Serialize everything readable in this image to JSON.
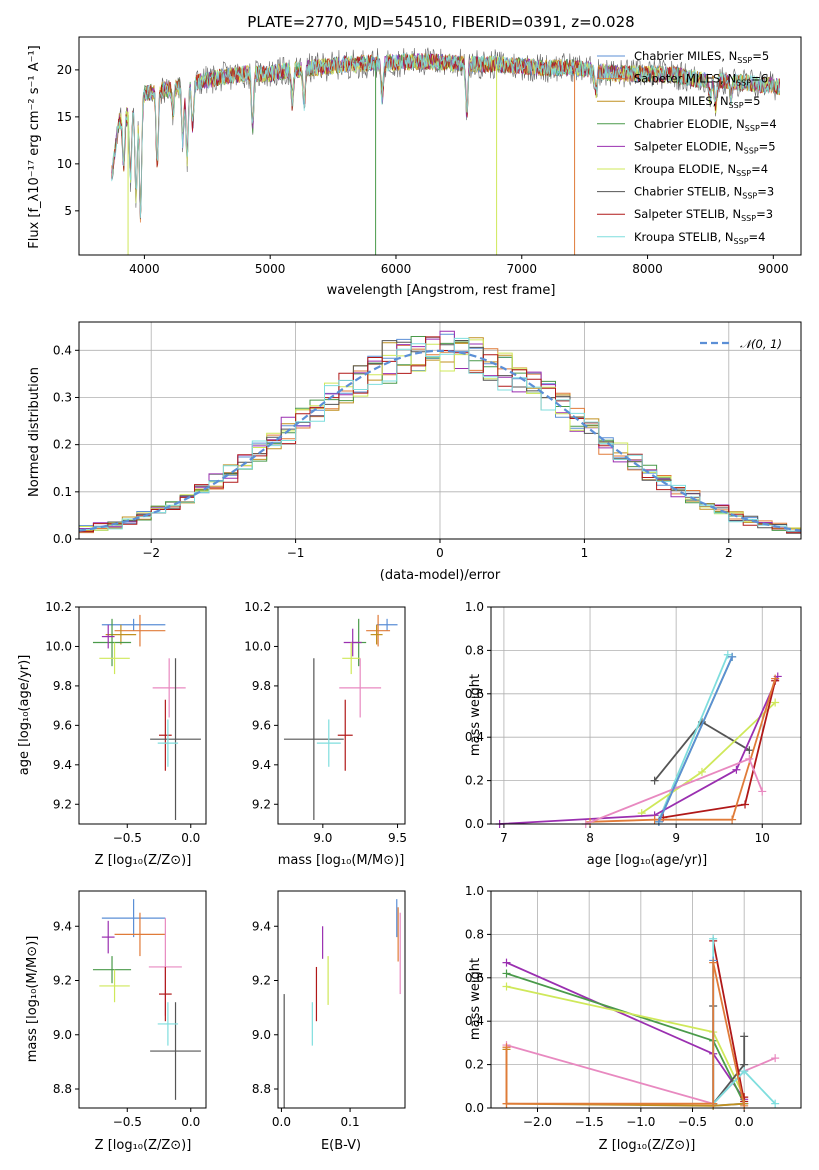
{
  "page_title": "PLATE=2770, MJD=54510, FIBERID=0391, z=0.028",
  "colors": [
    "#5b8fd6",
    "#e07b39",
    "#c09020",
    "#4a9a4a",
    "#9a2fb0",
    "#cfe85a",
    "#555555",
    "#b01818",
    "#7fdede"
  ],
  "chart_data": [
    {
      "id": "spectrum",
      "type": "line",
      "title": "PLATE=2770, MJD=54510, FIBERID=0391, z=0.028",
      "xlabel": "wavelength [Angstrom, rest frame]",
      "ylabel": "Flux [f_λ10⁻¹⁷ erg cm⁻² s⁻¹ A⁻¹]",
      "xlim": [
        3480,
        9220
      ],
      "ylim": [
        0.3,
        23.5
      ],
      "xticks": [
        4000,
        5000,
        6000,
        7000,
        8000,
        9000
      ],
      "yticks": [
        5,
        10,
        15,
        20
      ],
      "legend_position": "upper-right",
      "legend": [
        "Chabrier MILES, N_SSP=5",
        "Salpeter MILES, N_SSP=6",
        "Kroupa MILES, N_SSP=5",
        "Chabrier ELODIE, N_SSP=4",
        "Salpeter ELODIE, N_SSP=5",
        "Kroupa ELODIE, N_SSP=4",
        "Chabrier STELIB, N_SSP=3",
        "Salpeter STELIB, N_SSP=3",
        "Kroupa STELIB, N_SSP=4"
      ],
      "continuum": [
        [
          3740,
          9.0
        ],
        [
          3800,
          14.5
        ],
        [
          3900,
          16.0
        ],
        [
          4000,
          17.5
        ],
        [
          4200,
          18.0
        ],
        [
          4400,
          18.6
        ],
        [
          4600,
          19.2
        ],
        [
          4800,
          19.6
        ],
        [
          5000,
          19.6
        ],
        [
          5200,
          20.0
        ],
        [
          5400,
          20.3
        ],
        [
          5600,
          20.6
        ],
        [
          5800,
          20.7
        ],
        [
          6000,
          20.8
        ],
        [
          6200,
          20.9
        ],
        [
          6400,
          20.8
        ],
        [
          6600,
          20.6
        ],
        [
          6800,
          20.6
        ],
        [
          7000,
          20.4
        ],
        [
          7200,
          20.2
        ],
        [
          7400,
          20.3
        ],
        [
          7600,
          19.8
        ],
        [
          7800,
          19.6
        ],
        [
          8000,
          19.6
        ],
        [
          8200,
          19.5
        ],
        [
          8400,
          19.0
        ],
        [
          8600,
          18.8
        ],
        [
          8800,
          18.6
        ],
        [
          9000,
          18.3
        ],
        [
          9050,
          18.2
        ]
      ],
      "absorption": [
        [
          3835,
          10.0
        ],
        [
          3889,
          8.5
        ],
        [
          3934,
          6.5
        ],
        [
          3969,
          4.3
        ],
        [
          4102,
          9.8
        ],
        [
          4227,
          15.5
        ],
        [
          4305,
          12.5
        ],
        [
          4340,
          10.5
        ],
        [
          4384,
          14.0
        ],
        [
          4861,
          14.0
        ],
        [
          5175,
          16.5
        ],
        [
          5270,
          16.5
        ],
        [
          5890,
          17.0
        ],
        [
          6563,
          15.5
        ],
        [
          7590,
          17.5
        ],
        [
          8498,
          17.0
        ],
        [
          8542,
          16.0
        ],
        [
          8662,
          17.0
        ]
      ],
      "drops": [
        [
          3870,
          0.3,
          "#cfe85a"
        ],
        [
          5838,
          0.3,
          "#4a9a4a"
        ],
        [
          6800,
          0.3,
          "#cfe85a"
        ],
        [
          7420,
          0.3,
          "#e07b39"
        ]
      ]
    },
    {
      "id": "residuals",
      "type": "histogram",
      "xlabel": "(data-model)/error",
      "ylabel": "Normed distribution",
      "xlim": [
        -2.5,
        2.5
      ],
      "ylim": [
        0,
        0.46
      ],
      "xticks": [
        -2,
        -1,
        0,
        1,
        2
      ],
      "yticks": [
        0.0,
        0.1,
        0.2,
        0.3,
        0.4
      ],
      "reference_curve": "𝒩(0, 1)",
      "legend_position": "upper-right",
      "bin_width": 0.1
    },
    {
      "id": "age-vs-Z",
      "type": "errorbar",
      "xlabel": "Z [log₁₀(Z/Z⊙)]",
      "ylabel": "age  [log₁₀(age/yr)]",
      "xlim": [
        -0.88,
        0.12
      ],
      "ylim": [
        9.1,
        10.2
      ],
      "xticks": [
        -0.5,
        0.0
      ],
      "yticks": [
        9.2,
        9.4,
        9.6,
        9.8,
        10.0,
        10.2
      ],
      "points": [
        {
          "x": -0.45,
          "y": 10.11,
          "xerr": 0.25,
          "yerr": 0.03
        },
        {
          "x": -0.4,
          "y": 10.08,
          "xerr": 0.2,
          "yerr": 0.08
        },
        {
          "x": -0.55,
          "y": 10.06,
          "xerr": 0.12,
          "yerr": 0.05
        },
        {
          "x": -0.62,
          "y": 10.02,
          "xerr": 0.15,
          "yerr": 0.12
        },
        {
          "x": -0.65,
          "y": 10.05,
          "xerr": 0.05,
          "yerr": 0.06
        },
        {
          "x": -0.6,
          "y": 9.94,
          "xerr": 0.12,
          "yerr": 0.08
        },
        {
          "x": -0.17,
          "y": 9.79,
          "xerr": 0.13,
          "yerr": 0.15
        },
        {
          "x": -0.2,
          "y": 9.55,
          "xerr": 0.05,
          "yerr": 0.18
        },
        {
          "x": -0.12,
          "y": 9.53,
          "xerr": 0.2,
          "yerr": 0.41
        },
        {
          "x": -0.18,
          "y": 9.51,
          "xerr": 0.08,
          "yerr": 0.12
        }
      ]
    },
    {
      "id": "age-vs-mass",
      "type": "errorbar",
      "xlabel": "mass [log₁₀(M/M⊙)]",
      "xlim": [
        8.7,
        9.55
      ],
      "ylim": [
        9.1,
        10.2
      ],
      "xticks": [
        9.0,
        9.5
      ],
      "yticks": [
        9.2,
        9.4,
        9.6,
        9.8,
        10.0,
        10.2
      ],
      "points": [
        {
          "x": 9.43,
          "y": 10.11,
          "xerr": 0.07,
          "yerr": 0.03
        },
        {
          "x": 9.37,
          "y": 10.08,
          "xerr": 0.08,
          "yerr": 0.08
        },
        {
          "x": 9.36,
          "y": 10.06,
          "xerr": 0.04,
          "yerr": 0.05
        },
        {
          "x": 9.24,
          "y": 10.02,
          "xerr": 0.05,
          "yerr": 0.12
        },
        {
          "x": 9.2,
          "y": 10.02,
          "xerr": 0.06,
          "yerr": 0.07
        },
        {
          "x": 9.19,
          "y": 9.94,
          "xerr": 0.06,
          "yerr": 0.08
        },
        {
          "x": 9.25,
          "y": 9.79,
          "xerr": 0.14,
          "yerr": 0.15
        },
        {
          "x": 9.15,
          "y": 9.55,
          "xerr": 0.05,
          "yerr": 0.18
        },
        {
          "x": 8.94,
          "y": 9.53,
          "xerr": 0.2,
          "yerr": 0.41
        },
        {
          "x": 9.04,
          "y": 9.51,
          "xerr": 0.08,
          "yerr": 0.12
        }
      ]
    },
    {
      "id": "weight-vs-age",
      "type": "line",
      "xlabel": "age  [log₁₀(age/yr)]",
      "ylabel": "mass weight",
      "xlim": [
        6.85,
        10.45
      ],
      "ylim": [
        0,
        1
      ],
      "xticks": [
        7,
        8,
        9,
        10
      ],
      "yticks": [
        0.0,
        0.2,
        0.4,
        0.6,
        0.8,
        1.0
      ],
      "series": [
        {
          "color": "#555555",
          "x": [
            8.75,
            9.3,
            9.85
          ],
          "y": [
            0.2,
            0.47,
            0.34
          ]
        },
        {
          "color": "#7fdede",
          "x": [
            8.8,
            9.6
          ],
          "y": [
            0.02,
            0.78
          ]
        },
        {
          "color": "#4a9a4a",
          "x": [
            8.8,
            9.65
          ],
          "y": [
            0.01,
            0.77
          ]
        },
        {
          "color": "#cfe85a",
          "x": [
            8.6,
            9.3,
            10.15
          ],
          "y": [
            0.05,
            0.24,
            0.56
          ]
        },
        {
          "color": "#9a2fb0",
          "x": [
            6.95,
            8.75,
            9.7,
            10.18
          ],
          "y": [
            0.0,
            0.04,
            0.25,
            0.68
          ]
        },
        {
          "color": "#b01818",
          "x": [
            8.85,
            9.8,
            10.15
          ],
          "y": [
            0.03,
            0.09,
            0.66
          ]
        },
        {
          "color": "#e07b39",
          "x": [
            8.0,
            8.75,
            9.65,
            10.15
          ],
          "y": [
            0.01,
            0.02,
            0.02,
            0.67
          ]
        },
        {
          "color": "#e889c0",
          "x": [
            7.95,
            9.85,
            10.0
          ],
          "y": [
            0.0,
            0.3,
            0.15
          ]
        },
        {
          "color": "#5b8fd6",
          "x": [
            8.8,
            9.65
          ],
          "y": [
            0.01,
            0.77
          ]
        }
      ]
    },
    {
      "id": "mass-vs-Z",
      "type": "errorbar",
      "xlabel": "Z [log₁₀(Z/Z⊙)]",
      "ylabel": "mass [log₁₀(M/M⊙)]",
      "xlim": [
        -0.88,
        0.12
      ],
      "ylim": [
        8.73,
        9.53
      ],
      "xticks": [
        -0.5,
        0.0
      ],
      "yticks": [
        8.8,
        9.0,
        9.2,
        9.4
      ],
      "points": [
        {
          "x": -0.45,
          "y": 9.43,
          "xerr": 0.25,
          "yerr": 0.07
        },
        {
          "x": -0.4,
          "y": 9.37,
          "xerr": 0.2,
          "yerr": 0.08
        },
        {
          "x": -0.62,
          "y": 9.24,
          "xerr": 0.15,
          "yerr": 0.05
        },
        {
          "x": -0.65,
          "y": 9.36,
          "xerr": 0.05,
          "yerr": 0.06
        },
        {
          "x": -0.6,
          "y": 9.18,
          "xerr": 0.12,
          "yerr": 0.06
        },
        {
          "x": -0.2,
          "y": 9.25,
          "xerr": 0.13,
          "yerr": 0.18
        },
        {
          "x": -0.2,
          "y": 9.15,
          "xerr": 0.05,
          "yerr": 0.1
        },
        {
          "x": -0.12,
          "y": 8.94,
          "xerr": 0.2,
          "yerr": 0.18
        },
        {
          "x": -0.18,
          "y": 9.04,
          "xerr": 0.08,
          "yerr": 0.08
        }
      ]
    },
    {
      "id": "mass-vs-EBV",
      "type": "errorbar",
      "xlabel": "E(B-V)",
      "xlim": [
        -0.005,
        0.18
      ],
      "ylim": [
        8.73,
        9.53
      ],
      "xticks": [
        0.0,
        0.1
      ],
      "yticks": [
        8.8,
        9.0,
        9.2,
        9.4
      ],
      "points": [
        {
          "x": 0.004,
          "y": 8.94,
          "yerr": 0.21
        },
        {
          "x": 0.045,
          "y": 9.04,
          "yerr": 0.08
        },
        {
          "x": 0.051,
          "y": 9.15,
          "yerr": 0.1
        },
        {
          "x": 0.06,
          "y": 9.34,
          "yerr": 0.06
        },
        {
          "x": 0.068,
          "y": 9.2,
          "yerr": 0.09
        },
        {
          "x": 0.168,
          "y": 9.43,
          "yerr": 0.07
        },
        {
          "x": 0.17,
          "y": 9.37,
          "yerr": 0.1
        },
        {
          "x": 0.173,
          "y": 9.3,
          "yerr": 0.15
        }
      ]
    },
    {
      "id": "weight-vs-Z",
      "type": "line",
      "xlabel": "Z [log₁₀(Z/Z⊙)]",
      "ylabel": "mass weight",
      "xlim": [
        -2.45,
        0.55
      ],
      "ylim": [
        0,
        1
      ],
      "xticks": [
        -2.0,
        -1.5,
        -1.0,
        -0.5,
        0.0
      ],
      "yticks": [
        0.0,
        0.2,
        0.4,
        0.6,
        0.8,
        1.0
      ],
      "series": [
        {
          "color": "#9a2fb0",
          "x": [
            -2.3,
            -0.3,
            0.0
          ],
          "y": [
            0.67,
            0.25,
            0.04
          ]
        },
        {
          "color": "#4a9a4a",
          "x": [
            -2.3,
            -0.3,
            0.0
          ],
          "y": [
            0.62,
            0.31,
            0.02
          ]
        },
        {
          "color": "#cfe85a",
          "x": [
            -2.3,
            -0.3,
            0.0
          ],
          "y": [
            0.56,
            0.35,
            0.05
          ]
        },
        {
          "color": "#e889c0",
          "x": [
            -2.3,
            -0.3,
            0.0,
            0.3
          ],
          "y": [
            0.29,
            0.02,
            0.17,
            0.23
          ]
        },
        {
          "color": "#555555",
          "x": [
            -0.3,
            -0.3,
            0.0,
            0.0
          ],
          "y": [
            0.47,
            0.02,
            0.2,
            0.33
          ]
        },
        {
          "color": "#b01818",
          "x": [
            -0.3,
            0.0,
            0.0
          ],
          "y": [
            0.77,
            0.03,
            0.05
          ]
        },
        {
          "color": "#7fdede",
          "x": [
            -0.3,
            -0.3,
            0.0,
            0.3
          ],
          "y": [
            0.78,
            0.02,
            0.17,
            0.02
          ]
        },
        {
          "color": "#5b8fd6",
          "x": [
            -0.3,
            -0.3,
            0.0
          ],
          "y": [
            0.68,
            0.01,
            0.02
          ]
        },
        {
          "color": "#c09020",
          "x": [
            -2.3,
            -2.3,
            -0.3,
            0.0
          ],
          "y": [
            0.27,
            0.02,
            0.01,
            0.02
          ]
        },
        {
          "color": "#e07b39",
          "x": [
            -2.3,
            -2.3,
            -0.3,
            -0.3,
            0.0
          ],
          "y": [
            0.28,
            0.02,
            0.02,
            0.67,
            0.01
          ]
        }
      ]
    }
  ]
}
